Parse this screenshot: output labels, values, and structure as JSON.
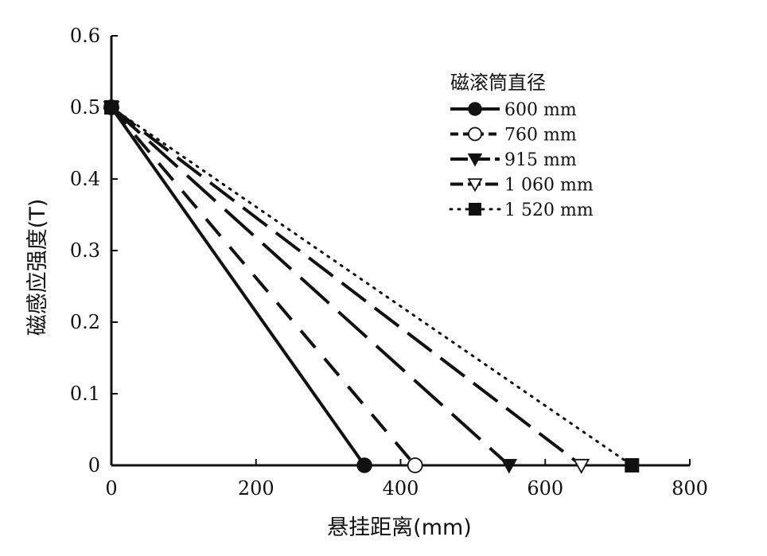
{
  "chart_data": {
    "type": "line",
    "title": "",
    "xlabel": "悬挂距离(mm)",
    "ylabel": "磁感应强度(T)",
    "xlim": [
      0,
      800
    ],
    "ylim": [
      0,
      0.6
    ],
    "x_ticks": [
      "0",
      "200",
      "400",
      "600",
      "800"
    ],
    "y_ticks": [
      "0",
      "0.1",
      "0.2",
      "0.3",
      "0.4",
      "0.5",
      "0.6"
    ],
    "grid": false,
    "legend": {
      "title": "磁滚筒直径",
      "placement": "top-right"
    },
    "series": [
      {
        "name": "600 mm",
        "marker": "filled-circle",
        "line_style": "solid",
        "points": [
          [
            0,
            0.5
          ],
          [
            350,
            0
          ]
        ]
      },
      {
        "name": "760 mm",
        "marker": "open-circle",
        "line_style": "dash",
        "points": [
          [
            0,
            0.5
          ],
          [
            420,
            0
          ]
        ]
      },
      {
        "name": "915 mm",
        "marker": "filled-triangle",
        "line_style": "long-dash",
        "points": [
          [
            0,
            0.5
          ],
          [
            550,
            0
          ]
        ]
      },
      {
        "name": "1 060 mm",
        "marker": "open-triangle",
        "line_style": "dash-medium",
        "points": [
          [
            0,
            0.5
          ],
          [
            650,
            0
          ]
        ]
      },
      {
        "name": "1 520 mm",
        "marker": "filled-square",
        "line_style": "dotted",
        "points": [
          [
            0,
            0.5
          ],
          [
            720,
            0
          ]
        ]
      }
    ]
  }
}
